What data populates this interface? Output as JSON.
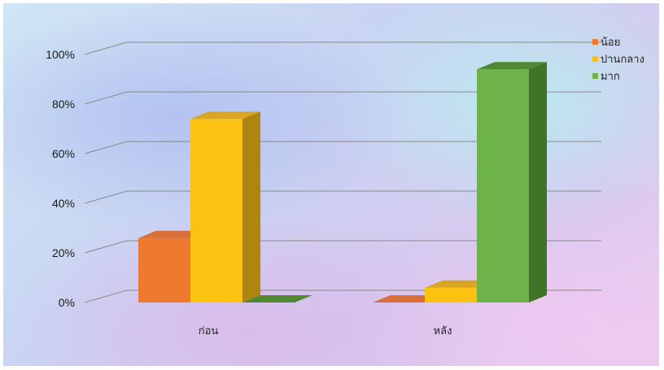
{
  "chart_data": {
    "type": "bar",
    "categories": [
      "ก่อน",
      "หลัง"
    ],
    "series": [
      {
        "name": "น้อย",
        "values": [
          26,
          0
        ],
        "color": "#ee7a30",
        "side": "#b9581a",
        "top": "#d9703a"
      },
      {
        "name": "ปานกลาง",
        "values": [
          74,
          6
        ],
        "color": "#fcc212",
        "side": "#b08410",
        "top": "#d8a622"
      },
      {
        "name": "มาก",
        "values": [
          0,
          94
        ],
        "color": "#6db34a",
        "side": "#3f7428",
        "top": "#4f8a32"
      }
    ],
    "y_ticks": [
      "0%",
      "20%",
      "40%",
      "60%",
      "80%",
      "100%"
    ],
    "ylim": [
      0,
      100
    ],
    "grid": true,
    "legend": "top-right",
    "title": "",
    "xlabel": "",
    "ylabel": ""
  }
}
